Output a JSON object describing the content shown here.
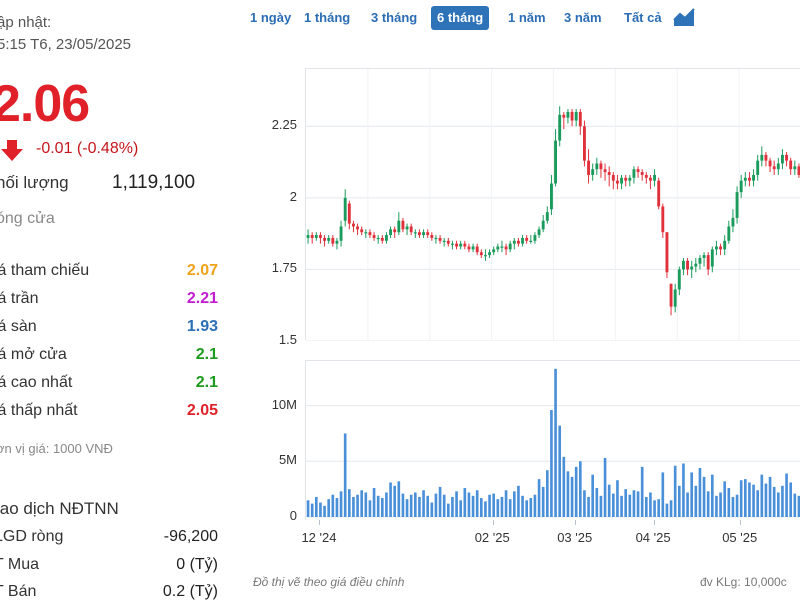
{
  "summary": {
    "update_label": "ập nhật:",
    "update_time": "5:15 T6, 23/05/2025",
    "price": "2.06",
    "change": "-0.01 (-0.48%)",
    "volume_label": "hối lượng",
    "volume_value": "1,119,100",
    "status": "óng cửa",
    "colors": {
      "down": "#e0212a",
      "ref": "#f0a31a",
      "ceil": "#c21bd2",
      "floor": "#2c6fb5",
      "up": "#1b9a1b"
    }
  },
  "stats": [
    {
      "label": "iá tham chiếu",
      "value": "2.07",
      "color": "#f0a31a"
    },
    {
      "label": "iá trần",
      "value": "2.21",
      "color": "#c21bd2"
    },
    {
      "label": "iá sàn",
      "value": "1.93",
      "color": "#2c6fb5"
    },
    {
      "label": "iá mở cửa",
      "value": "2.1",
      "color": "#1b9a1b"
    },
    {
      "label": "iá cao nhất",
      "value": "2.1",
      "color": "#1b9a1b"
    },
    {
      "label": "iá thấp nhất",
      "value": "2.05",
      "color": "#e0212a"
    }
  ],
  "unit_note": "ơn vị giá: 1000 VNĐ",
  "foreign": {
    "title": "iao dịch NĐTNN",
    "rows": [
      {
        "label": "LGD ròng",
        "value": "-96,200"
      },
      {
        "label": "T Mua",
        "value": "0 (Tỷ)"
      },
      {
        "label": "T Bán",
        "value": "0.2 (Tỷ)"
      }
    ]
  },
  "tabs": [
    {
      "label": "1 ngày",
      "active": false
    },
    {
      "label": "1 tháng",
      "active": false
    },
    {
      "label": "3 tháng",
      "active": false
    },
    {
      "label": "6 tháng",
      "active": true
    },
    {
      "label": "1 năm",
      "active": false
    },
    {
      "label": "3 năm",
      "active": false
    },
    {
      "label": "Tất cả",
      "active": false
    }
  ],
  "chart_icon": "area-chart-icon",
  "footnote": "Đồ thị vẽ theo giá điều chỉnh",
  "volume_note": "đv KLg: 10,000c",
  "chart_data": {
    "type": "candlestick",
    "price_axis": {
      "ylim": [
        1.5,
        2.45
      ],
      "ticks": [
        "2.25",
        "2",
        "1.75",
        "1.5"
      ],
      "tick_values": [
        2.25,
        2.0,
        1.75,
        1.5
      ]
    },
    "volume_axis": {
      "ylim": [
        0,
        14000000
      ],
      "ticks": [
        "10M",
        "5M",
        "0"
      ],
      "tick_values": [
        10000000,
        5000000,
        0
      ]
    },
    "x_ticks": [
      "12 '24",
      "02 '25",
      "03 '25",
      "04 '25",
      "05 '25"
    ],
    "x_tick_index": [
      3,
      45,
      65,
      84,
      105
    ],
    "up_color": "#1a9b5c",
    "down_color": "#e0313b",
    "volume_color": "#4a90d9",
    "grid": true,
    "close": [
      1.87,
      1.86,
      1.87,
      1.86,
      1.85,
      1.86,
      1.84,
      1.85,
      1.9,
      2.0,
      1.91,
      1.9,
      1.89,
      1.88,
      1.88,
      1.87,
      1.86,
      1.86,
      1.85,
      1.87,
      1.89,
      1.88,
      1.92,
      1.89,
      1.9,
      1.88,
      1.88,
      1.87,
      1.88,
      1.87,
      1.86,
      1.86,
      1.85,
      1.85,
      1.84,
      1.84,
      1.83,
      1.84,
      1.83,
      1.82,
      1.83,
      1.81,
      1.8,
      1.8,
      1.81,
      1.82,
      1.83,
      1.83,
      1.82,
      1.84,
      1.85,
      1.84,
      1.86,
      1.85,
      1.85,
      1.87,
      1.89,
      1.92,
      1.95,
      2.05,
      2.2,
      2.29,
      2.28,
      2.3,
      2.27,
      2.3,
      2.25,
      2.13,
      2.08,
      2.1,
      2.12,
      2.1,
      2.09,
      2.08,
      2.06,
      2.05,
      2.07,
      2.06,
      2.07,
      2.1,
      2.09,
      2.08,
      2.07,
      2.06,
      2.08,
      1.97,
      1.88,
      1.74,
      1.62,
      1.68,
      1.75,
      1.78,
      1.75,
      1.76,
      1.77,
      1.79,
      1.8,
      1.75,
      1.82,
      1.83,
      1.82,
      1.85,
      1.9,
      1.93,
      2.02,
      2.06,
      2.07,
      2.06,
      2.08,
      2.13,
      2.15,
      2.13,
      2.11,
      2.1,
      2.12,
      2.15,
      2.13,
      2.1,
      2.11,
      2.08
    ],
    "open": [
      1.86,
      1.87,
      1.86,
      1.87,
      1.86,
      1.85,
      1.86,
      1.84,
      1.85,
      1.92,
      1.98,
      1.91,
      1.9,
      1.89,
      1.88,
      1.88,
      1.87,
      1.86,
      1.86,
      1.85,
      1.87,
      1.89,
      1.88,
      1.92,
      1.89,
      1.9,
      1.88,
      1.88,
      1.87,
      1.88,
      1.87,
      1.86,
      1.86,
      1.85,
      1.85,
      1.84,
      1.84,
      1.83,
      1.84,
      1.83,
      1.82,
      1.83,
      1.81,
      1.8,
      1.8,
      1.81,
      1.82,
      1.83,
      1.83,
      1.82,
      1.84,
      1.85,
      1.84,
      1.86,
      1.85,
      1.85,
      1.87,
      1.89,
      1.92,
      1.96,
      2.05,
      2.2,
      2.29,
      2.28,
      2.3,
      2.27,
      2.3,
      2.25,
      2.13,
      2.08,
      2.1,
      2.12,
      2.1,
      2.09,
      2.08,
      2.06,
      2.05,
      2.07,
      2.06,
      2.07,
      2.1,
      2.09,
      2.08,
      2.07,
      2.06,
      2.06,
      1.97,
      1.88,
      1.7,
      1.62,
      1.68,
      1.75,
      1.78,
      1.75,
      1.76,
      1.77,
      1.79,
      1.8,
      1.76,
      1.82,
      1.83,
      1.82,
      1.85,
      1.9,
      1.93,
      2.02,
      2.06,
      2.07,
      2.06,
      2.08,
      2.13,
      2.15,
      2.13,
      2.11,
      2.1,
      2.12,
      2.15,
      2.13,
      2.1,
      2.11
    ],
    "high": [
      1.89,
      1.88,
      1.88,
      1.88,
      1.87,
      1.87,
      1.87,
      1.86,
      1.92,
      2.03,
      1.99,
      1.92,
      1.91,
      1.9,
      1.89,
      1.89,
      1.88,
      1.87,
      1.87,
      1.88,
      1.9,
      1.9,
      1.95,
      1.93,
      1.91,
      1.91,
      1.89,
      1.89,
      1.89,
      1.89,
      1.88,
      1.87,
      1.87,
      1.86,
      1.86,
      1.85,
      1.85,
      1.85,
      1.85,
      1.84,
      1.84,
      1.84,
      1.82,
      1.82,
      1.82,
      1.83,
      1.84,
      1.85,
      1.84,
      1.85,
      1.86,
      1.86,
      1.87,
      1.87,
      1.87,
      1.88,
      1.9,
      1.94,
      1.97,
      2.08,
      2.24,
      2.32,
      2.3,
      2.31,
      2.31,
      2.31,
      2.31,
      2.27,
      2.17,
      2.12,
      2.14,
      2.13,
      2.12,
      2.11,
      2.09,
      2.08,
      2.08,
      2.08,
      2.08,
      2.11,
      2.11,
      2.1,
      2.09,
      2.08,
      2.1,
      2.07,
      1.98,
      1.88,
      1.7,
      1.7,
      1.76,
      1.79,
      1.79,
      1.78,
      1.79,
      1.8,
      1.81,
      1.81,
      1.83,
      1.85,
      1.84,
      1.87,
      1.92,
      1.96,
      2.04,
      2.08,
      2.09,
      2.09,
      2.1,
      2.15,
      2.18,
      2.16,
      2.14,
      2.13,
      2.14,
      2.17,
      2.16,
      2.14,
      2.13,
      2.12
    ],
    "low": [
      1.84,
      1.84,
      1.85,
      1.84,
      1.83,
      1.84,
      1.83,
      1.82,
      1.83,
      1.9,
      1.89,
      1.88,
      1.87,
      1.87,
      1.86,
      1.86,
      1.85,
      1.84,
      1.84,
      1.84,
      1.86,
      1.86,
      1.87,
      1.88,
      1.87,
      1.87,
      1.86,
      1.86,
      1.86,
      1.86,
      1.85,
      1.84,
      1.84,
      1.83,
      1.83,
      1.82,
      1.82,
      1.82,
      1.82,
      1.81,
      1.81,
      1.8,
      1.79,
      1.78,
      1.79,
      1.8,
      1.81,
      1.81,
      1.8,
      1.81,
      1.82,
      1.83,
      1.83,
      1.84,
      1.84,
      1.84,
      1.86,
      1.88,
      1.91,
      1.94,
      2.04,
      2.18,
      2.24,
      2.26,
      2.25,
      2.25,
      2.22,
      2.11,
      2.05,
      2.06,
      2.08,
      2.07,
      2.06,
      2.04,
      2.03,
      2.03,
      2.03,
      2.04,
      2.04,
      2.05,
      2.07,
      2.06,
      2.05,
      2.03,
      2.04,
      1.96,
      1.86,
      1.72,
      1.59,
      1.6,
      1.66,
      1.73,
      1.73,
      1.72,
      1.74,
      1.75,
      1.76,
      1.73,
      1.74,
      1.8,
      1.8,
      1.8,
      1.84,
      1.88,
      1.91,
      2.0,
      2.04,
      2.04,
      2.04,
      2.06,
      2.11,
      2.11,
      2.09,
      2.08,
      2.08,
      2.1,
      2.11,
      2.08,
      2.08,
      2.07
    ],
    "volume": [
      1.5,
      1.2,
      1.8,
      1.3,
      1.0,
      1.6,
      2.0,
      1.7,
      2.3,
      7.5,
      2.5,
      1.8,
      2.0,
      2.4,
      2.2,
      1.5,
      2.6,
      1.9,
      1.7,
      2.2,
      3.1,
      2.8,
      3.2,
      2.1,
      1.6,
      2.0,
      2.2,
      1.8,
      2.4,
      1.9,
      1.3,
      2.1,
      2.7,
      2.0,
      1.2,
      1.8,
      2.3,
      1.5,
      2.6,
      2.2,
      1.9,
      2.4,
      1.7,
      1.4,
      2.0,
      2.1,
      1.6,
      1.8,
      2.4,
      1.6,
      2.3,
      2.8,
      1.9,
      1.5,
      1.7,
      2.0,
      3.4,
      2.7,
      4.2,
      9.6,
      13.3,
      8.2,
      5.4,
      4.1,
      3.6,
      4.5,
      5.0,
      2.4,
      1.8,
      3.8,
      2.6,
      1.9,
      5.3,
      2.9,
      2.1,
      3.3,
      1.9,
      2.5,
      2.0,
      2.4,
      2.3,
      4.5,
      1.8,
      2.2,
      1.5,
      1.6,
      4.0,
      1.2,
      1.5,
      4.6,
      2.8,
      4.8,
      2.2,
      4.0,
      2.8,
      4.4,
      3.6,
      2.3,
      3.8,
      1.9,
      2.2,
      3.2,
      2.6,
      1.8,
      2.0,
      3.3,
      3.4,
      3.1,
      2.9,
      2.4,
      3.8,
      3.0,
      3.6,
      2.7,
      2.2,
      2.8,
      3.9,
      3.1,
      2.1,
      1.9
    ]
  }
}
